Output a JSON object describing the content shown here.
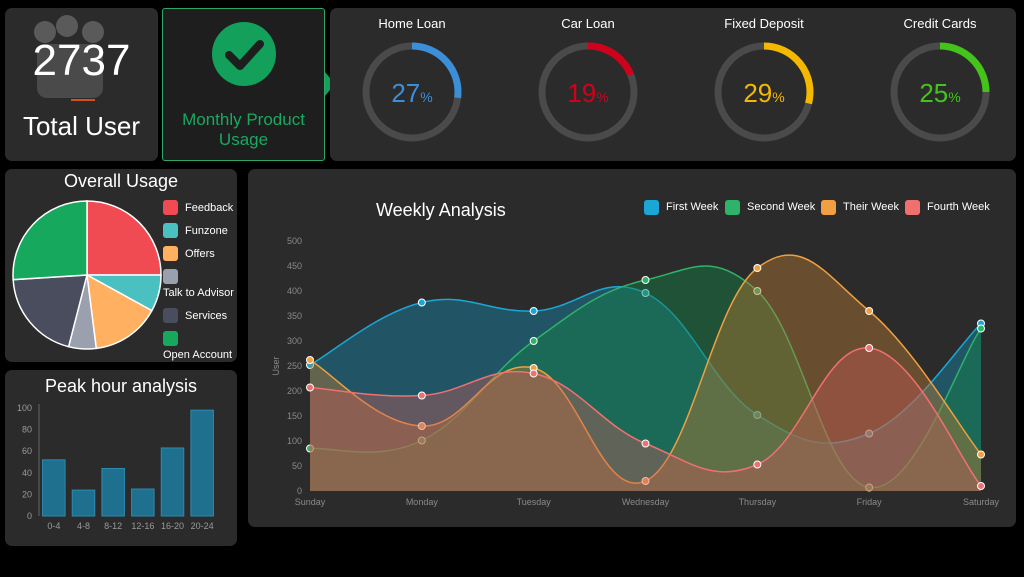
{
  "total_user": {
    "value": "2737",
    "label": "Total User"
  },
  "monthly_usage": {
    "label_line1": "Monthly Product",
    "label_line2": "Usage"
  },
  "gauges": [
    {
      "title": "Home Loan",
      "value": 27,
      "value_text": "27",
      "unit": "%",
      "color": "#3b8fd8",
      "track": "#4a4a4a"
    },
    {
      "title": "Car Loan",
      "value": 19,
      "value_text": "19",
      "unit": "%",
      "color": "#d0021b",
      "track": "#4a4a4a"
    },
    {
      "title": "Fixed Deposit",
      "value": 29,
      "value_text": "29",
      "unit": "%",
      "color": "#f5b800",
      "track": "#4a4a4a"
    },
    {
      "title": "Credit Cards",
      "value": 25,
      "value_text": "25",
      "unit": "%",
      "color": "#44c41a",
      "track": "#4a4a4a"
    }
  ],
  "pie": {
    "title": "Overall Usage",
    "legend": [
      "Feedback",
      "Funzone",
      "Offers",
      "Talk to Advisor",
      "Services",
      "Open Account"
    ],
    "colors": [
      "#f04a52",
      "#4bc0c0",
      "#ffb060",
      "#9aa0ae",
      "#4a4d5e",
      "#16a85c"
    ],
    "values": [
      25,
      8,
      15,
      6,
      20,
      26
    ]
  },
  "peak": {
    "title": "Peak hour analysis",
    "chart_data": {
      "type": "bar",
      "categories": [
        "0-4",
        "4-8",
        "8-12",
        "12-16",
        "16-20",
        "20-24"
      ],
      "values": [
        52,
        24,
        44,
        25,
        63,
        98
      ],
      "ylim": [
        0,
        100
      ],
      "yticks": [
        0,
        20,
        40,
        60,
        80,
        100
      ],
      "color": "#1f6f8e"
    }
  },
  "weekly": {
    "title": "Weekly Analysis",
    "chart_data": {
      "type": "area",
      "categories": [
        "Sunday",
        "Monday",
        "Tuesday",
        "Wednesday",
        "Thursday",
        "Friday",
        "Saturday"
      ],
      "ylabel": "User",
      "ylim": [
        0,
        500
      ],
      "yticks": [
        0,
        50,
        100,
        150,
        200,
        250,
        300,
        350,
        400,
        450,
        500
      ],
      "legend_position": "top-right",
      "series": [
        {
          "name": "First Week",
          "color": "#1aa7d6",
          "fill": "rgba(26,120,150,0.55)",
          "values": [
            252,
            377,
            360,
            396,
            152,
            115,
            335
          ]
        },
        {
          "name": "Second Week",
          "color": "#2eb36a",
          "fill": "rgba(20,130,70,0.45)",
          "values": [
            85,
            101,
            300,
            422,
            400,
            7,
            325
          ]
        },
        {
          "name": "Their Week",
          "color": "#f0a040",
          "fill": "rgba(180,120,50,0.45)",
          "values": [
            262,
            130,
            246,
            20,
            446,
            360,
            73
          ]
        },
        {
          "name": "Fourth Week",
          "color": "#f07070",
          "fill": "rgba(200,90,90,0.40)",
          "values": [
            207,
            191,
            235,
            95,
            53,
            286,
            10
          ]
        }
      ]
    }
  }
}
